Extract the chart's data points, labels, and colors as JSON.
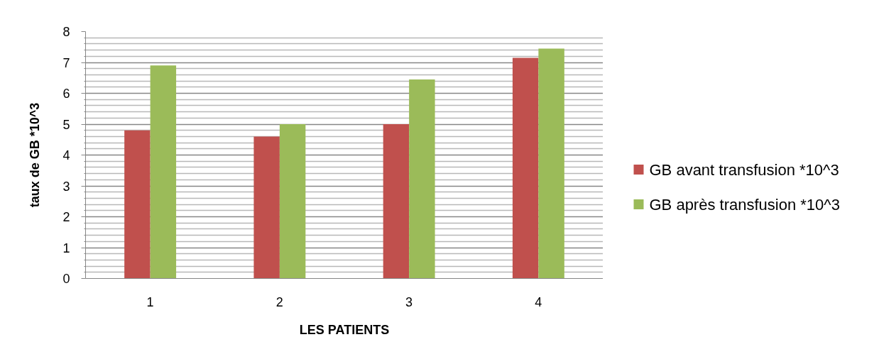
{
  "chart_data": {
    "type": "bar",
    "xlabel": "LES PATIENTS",
    "ylabel": "taux de GB *10^3",
    "categories": [
      "1",
      "2",
      "3",
      "4"
    ],
    "series": [
      {
        "name": "GB avant transfusion *10^3",
        "color": "#c0504d",
        "values": [
          4.8,
          4.6,
          5.0,
          7.15
        ]
      },
      {
        "name": "GB après transfusion *10^3",
        "color": "#9bbb59",
        "values": [
          6.9,
          5.0,
          6.45,
          7.45
        ]
      }
    ],
    "ylim": [
      0,
      8
    ],
    "yticks": [
      0,
      {
        "value": 0.2,
        "label": null
      },
      {
        "value": 0.4,
        "label": null
      },
      {
        "value": 0.6,
        "label": null
      },
      {
        "value": 0.8,
        "label": null
      },
      1,
      {
        "value": 1.2,
        "label": null
      },
      {
        "value": 1.4,
        "label": null
      },
      {
        "value": 1.6,
        "label": null
      },
      {
        "value": 1.8,
        "label": null
      },
      2,
      {
        "value": 2.2,
        "label": null
      },
      {
        "value": 2.4,
        "label": null
      },
      {
        "value": 2.6,
        "label": null
      },
      {
        "value": 2.8,
        "label": null
      },
      3,
      {
        "value": 3.2,
        "label": null
      },
      {
        "value": 3.4,
        "label": null
      },
      {
        "value": 3.6,
        "label": null
      },
      {
        "value": 3.8,
        "label": null
      },
      4,
      {
        "value": 4.2,
        "label": null
      },
      {
        "value": 4.4,
        "label": null
      },
      {
        "value": 4.6,
        "label": null
      },
      {
        "value": 4.8,
        "label": null
      },
      5,
      {
        "value": 5.2,
        "label": null
      },
      {
        "value": 5.4,
        "label": null
      },
      {
        "value": 5.6,
        "label": null
      },
      {
        "value": 5.8,
        "label": null
      },
      6,
      {
        "value": 6.2,
        "label": null
      },
      {
        "value": 6.4,
        "label": null
      },
      {
        "value": 6.6,
        "label": null
      },
      {
        "value": 6.8,
        "label": null
      },
      7,
      {
        "value": 7.2,
        "label": null
      },
      {
        "value": 7.4,
        "label": null
      },
      {
        "value": 7.6,
        "label": null
      },
      {
        "value": 7.8,
        "label": null
      },
      8
    ],
    "grid": "y",
    "legend": "right"
  }
}
